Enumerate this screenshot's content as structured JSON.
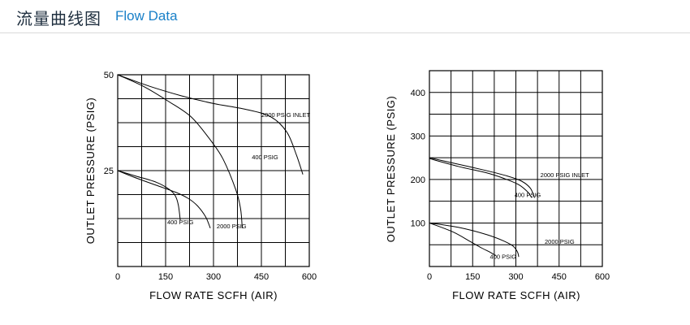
{
  "header": {
    "title_cn": "流量曲线图",
    "title_en": "Flow Data"
  },
  "chart_data": [
    {
      "type": "line",
      "xlabel": "FLOW  RATE SCFH (AIR)",
      "ylabel": "OUTLET  PRESSURE (PSIG)",
      "xlim": [
        0,
        600
      ],
      "ylim": [
        0,
        50
      ],
      "x_ticks": [
        0,
        150,
        300,
        450,
        600
      ],
      "y_ticks": [
        25,
        50
      ],
      "grid": true,
      "series": [
        {
          "name": "2000 PSIG INLET",
          "points": [
            [
              0,
              50
            ],
            [
              100,
              47
            ],
            [
              200,
              44.5
            ],
            [
              300,
              42.5
            ],
            [
              400,
              41
            ],
            [
              480,
              39
            ],
            [
              530,
              35
            ],
            [
              560,
              29
            ],
            [
              580,
              24
            ]
          ]
        },
        {
          "name": "400 PSIG",
          "points": [
            [
              0,
              50
            ],
            [
              80,
              47
            ],
            [
              160,
              43
            ],
            [
              230,
              39
            ],
            [
              290,
              33
            ],
            [
              330,
              28
            ],
            [
              370,
              20
            ],
            [
              385,
              15
            ],
            [
              390,
              10
            ]
          ]
        },
        {
          "name": "400 PSIG",
          "points": [
            [
              0,
              25
            ],
            [
              60,
              23.5
            ],
            [
              120,
              22
            ],
            [
              160,
              20.2
            ],
            [
              180,
              18.5
            ],
            [
              190,
              16
            ],
            [
              196,
              12
            ]
          ]
        },
        {
          "name": "2000 PSIG",
          "points": [
            [
              0,
              25
            ],
            [
              60,
              23
            ],
            [
              120,
              21.2
            ],
            [
              180,
              19.4
            ],
            [
              220,
              17.8
            ],
            [
              250,
              15.8
            ],
            [
              275,
              13
            ],
            [
              290,
              10
            ]
          ]
        }
      ],
      "annotations": [
        {
          "text": "2000 PSIG INLET",
          "x": 450,
          "y": 39
        },
        {
          "text": "400 PSIG",
          "x": 420,
          "y": 28
        },
        {
          "text": "400 PSIG",
          "x": 155,
          "y": 11
        },
        {
          "text": "2000 PSIG",
          "x": 310,
          "y": 10
        }
      ]
    },
    {
      "type": "line",
      "xlabel": "FLOW  RATE SCFH (AIR)",
      "ylabel": "OUTLET  PRESSURE (PSIG)",
      "xlim": [
        0,
        600
      ],
      "ylim": [
        0,
        450
      ],
      "x_ticks": [
        0,
        150,
        300,
        450,
        600
      ],
      "y_ticks": [
        100,
        200,
        300,
        400
      ],
      "grid": true,
      "series": [
        {
          "name": "2000 PSIG INLET",
          "points": [
            [
              0,
              250
            ],
            [
              100,
              235
            ],
            [
              200,
              220
            ],
            [
              270,
              208
            ],
            [
              320,
              196
            ],
            [
              350,
              180
            ],
            [
              365,
              158
            ]
          ]
        },
        {
          "name": "400 PSIG",
          "points": [
            [
              0,
              248
            ],
            [
              100,
              230
            ],
            [
              200,
              215
            ],
            [
              260,
              202
            ],
            [
              310,
              188
            ],
            [
              340,
              172
            ],
            [
              355,
              158
            ]
          ]
        },
        {
          "name": "2000 PSIG",
          "points": [
            [
              0,
              100
            ],
            [
              100,
              90
            ],
            [
              200,
              73
            ],
            [
              260,
              58
            ],
            [
              290,
              47
            ],
            [
              305,
              34
            ],
            [
              310,
              22
            ]
          ]
        },
        {
          "name": "400 PSIG",
          "points": [
            [
              0,
              100
            ],
            [
              80,
              80
            ],
            [
              140,
              58
            ],
            [
              180,
              43
            ],
            [
              210,
              33
            ],
            [
              230,
              25
            ]
          ]
        }
      ],
      "annotations": [
        {
          "text": "2000 PSIG INLET",
          "x": 385,
          "y": 205
        },
        {
          "text": "400 PSIG",
          "x": 295,
          "y": 160
        },
        {
          "text": "2000 PSIG",
          "x": 400,
          "y": 52
        },
        {
          "text": "400 PSIG",
          "x": 210,
          "y": 18
        }
      ]
    }
  ]
}
